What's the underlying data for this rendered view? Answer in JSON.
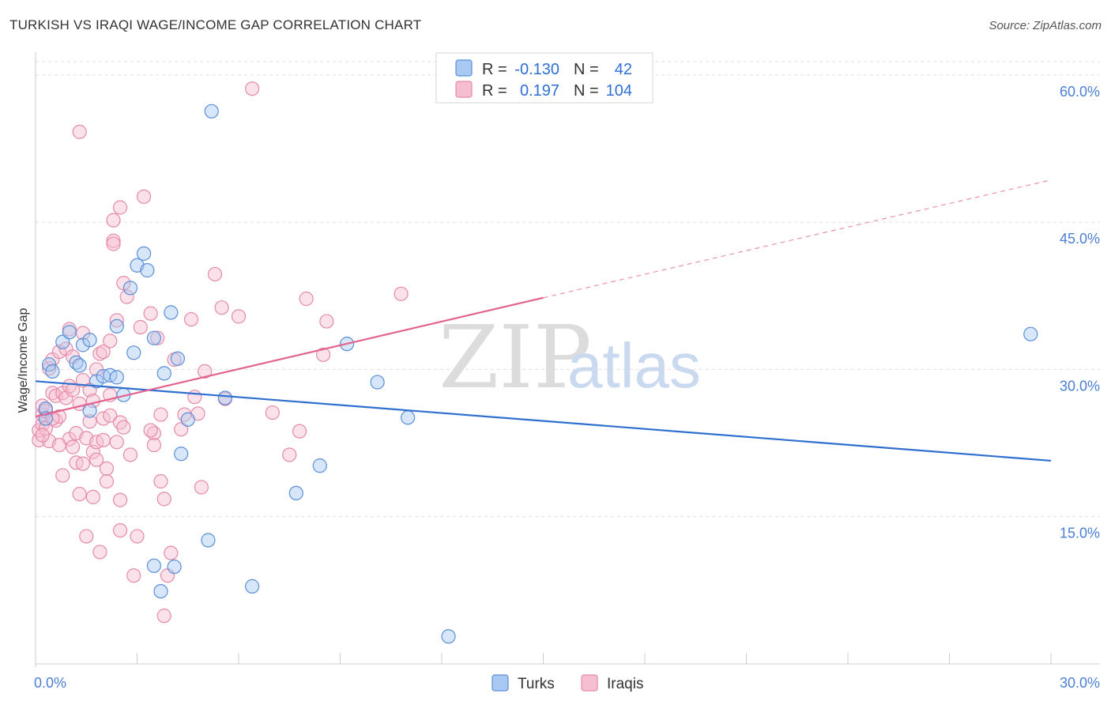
{
  "title": "TURKISH VS IRAQI WAGE/INCOME GAP CORRELATION CHART",
  "source": "Source: ZipAtlas.com",
  "watermark": {
    "zip": "ZIP",
    "atlas": "atlas"
  },
  "colors": {
    "turks_fill": "#a9c8f2",
    "turks_stroke": "#5a8fd8",
    "turks_line": "#2f6fd0",
    "iraqis_fill": "#f6bfd1",
    "iraqis_stroke": "#e58aa8",
    "iraqis_line": "#e2638f",
    "grid": "#dddddd",
    "axis_label": "#4a7fd4"
  },
  "legend": {
    "rows": [
      {
        "r_label": "R = ",
        "r_value": "-0.130",
        "n_label": "N = ",
        "n_value": "42"
      },
      {
        "r_label": "R = ",
        "r_value": "0.197",
        "n_label": "N = ",
        "n_value": "104"
      }
    ]
  },
  "chart_data": {
    "type": "scatter",
    "title": "TURKISH VS IRAQI WAGE/INCOME GAP CORRELATION CHART",
    "xlabel": "",
    "ylabel": "Wage/Income Gap",
    "xlim": [
      0,
      30
    ],
    "ylim": [
      0,
      62
    ],
    "x_tick_labels": [
      "0.0%",
      "30.0%"
    ],
    "y_ticks": [
      15,
      30,
      45,
      60
    ],
    "y_tick_labels": [
      "15.0%",
      "30.0%",
      "45.0%",
      "60.0%"
    ],
    "legend_entries": [
      "Turks",
      "Iraqis"
    ],
    "series": [
      {
        "name": "Turks",
        "trend": {
          "x": [
            0.0,
            30.0
          ],
          "y": [
            28.8,
            20.7
          ]
        },
        "points": [
          [
            0.3,
            26.0
          ],
          [
            0.3,
            25.0
          ],
          [
            0.4,
            30.5
          ],
          [
            0.5,
            29.8
          ],
          [
            0.8,
            32.8
          ],
          [
            1.0,
            33.8
          ],
          [
            1.2,
            30.7
          ],
          [
            1.3,
            30.4
          ],
          [
            1.4,
            32.5
          ],
          [
            1.6,
            33.0
          ],
          [
            1.6,
            25.8
          ],
          [
            1.8,
            28.8
          ],
          [
            2.0,
            29.3
          ],
          [
            2.2,
            29.4
          ],
          [
            2.4,
            29.2
          ],
          [
            2.4,
            34.4
          ],
          [
            2.6,
            27.4
          ],
          [
            2.8,
            38.3
          ],
          [
            2.9,
            31.7
          ],
          [
            3.0,
            40.6
          ],
          [
            3.2,
            41.8
          ],
          [
            3.3,
            40.1
          ],
          [
            3.5,
            10.0
          ],
          [
            3.7,
            7.4
          ],
          [
            3.8,
            29.6
          ],
          [
            4.0,
            35.8
          ],
          [
            4.1,
            9.9
          ],
          [
            4.2,
            31.1
          ],
          [
            4.3,
            21.4
          ],
          [
            4.5,
            24.9
          ],
          [
            5.2,
            56.3
          ],
          [
            5.1,
            12.6
          ],
          [
            5.6,
            27.1
          ],
          [
            6.4,
            7.9
          ],
          [
            7.7,
            17.4
          ],
          [
            8.4,
            20.2
          ],
          [
            9.2,
            32.6
          ],
          [
            10.1,
            28.7
          ],
          [
            11.0,
            25.1
          ],
          [
            12.2,
            2.8
          ],
          [
            29.4,
            33.6
          ],
          [
            3.5,
            33.2
          ]
        ]
      },
      {
        "name": "Iraqis",
        "trend": {
          "x": [
            0.0,
            15.0
          ],
          "y": [
            25.2,
            37.3
          ]
        },
        "trend_extension": {
          "x": [
            15.0,
            30.0
          ],
          "y": [
            37.3,
            49.3
          ]
        },
        "points": [
          [
            0.1,
            22.8
          ],
          [
            0.1,
            23.8
          ],
          [
            0.2,
            24.4
          ],
          [
            0.2,
            25.4
          ],
          [
            0.2,
            26.3
          ],
          [
            0.3,
            24.0
          ],
          [
            0.3,
            25.8
          ],
          [
            0.4,
            22.7
          ],
          [
            0.4,
            30.1
          ],
          [
            0.5,
            27.6
          ],
          [
            0.5,
            31.0
          ],
          [
            0.6,
            24.8
          ],
          [
            0.6,
            27.3
          ],
          [
            0.7,
            25.2
          ],
          [
            0.7,
            31.8
          ],
          [
            0.8,
            27.6
          ],
          [
            0.8,
            19.2
          ],
          [
            0.9,
            27.1
          ],
          [
            0.9,
            32.1
          ],
          [
            1.0,
            28.3
          ],
          [
            1.0,
            34.1
          ],
          [
            1.0,
            22.9
          ],
          [
            1.1,
            31.3
          ],
          [
            1.1,
            22.1
          ],
          [
            1.2,
            23.5
          ],
          [
            1.2,
            20.5
          ],
          [
            1.3,
            17.3
          ],
          [
            1.3,
            26.5
          ],
          [
            1.4,
            33.7
          ],
          [
            1.4,
            28.9
          ],
          [
            1.5,
            23.0
          ],
          [
            1.5,
            13.0
          ],
          [
            1.6,
            27.9
          ],
          [
            1.6,
            24.7
          ],
          [
            1.7,
            17.0
          ],
          [
            1.7,
            21.6
          ],
          [
            1.8,
            22.6
          ],
          [
            1.8,
            30.0
          ],
          [
            1.8,
            20.8
          ],
          [
            1.9,
            31.6
          ],
          [
            1.9,
            11.4
          ],
          [
            2.0,
            31.8
          ],
          [
            2.0,
            25.0
          ],
          [
            2.0,
            22.8
          ],
          [
            2.1,
            18.6
          ],
          [
            2.1,
            19.9
          ],
          [
            2.2,
            32.9
          ],
          [
            2.2,
            25.3
          ],
          [
            2.3,
            45.2
          ],
          [
            2.3,
            43.1
          ],
          [
            2.3,
            42.8
          ],
          [
            2.4,
            22.6
          ],
          [
            2.4,
            35.0
          ],
          [
            2.5,
            46.5
          ],
          [
            2.5,
            13.6
          ],
          [
            2.5,
            24.6
          ],
          [
            2.6,
            38.8
          ],
          [
            2.6,
            24.1
          ],
          [
            2.7,
            37.4
          ],
          [
            2.8,
            21.3
          ],
          [
            3.0,
            13.0
          ],
          [
            3.1,
            34.3
          ],
          [
            3.2,
            47.6
          ],
          [
            3.4,
            35.7
          ],
          [
            3.5,
            23.5
          ],
          [
            3.5,
            22.3
          ],
          [
            3.6,
            33.2
          ],
          [
            3.7,
            18.6
          ],
          [
            3.7,
            25.4
          ],
          [
            3.8,
            16.8
          ],
          [
            4.0,
            11.3
          ],
          [
            4.1,
            31.0
          ],
          [
            4.3,
            23.9
          ],
          [
            4.4,
            25.4
          ],
          [
            4.6,
            35.1
          ],
          [
            4.7,
            27.2
          ],
          [
            4.9,
            18.0
          ],
          [
            5.0,
            29.8
          ],
          [
            5.3,
            39.7
          ],
          [
            5.5,
            36.3
          ],
          [
            5.6,
            27.0
          ],
          [
            6.0,
            35.4
          ],
          [
            6.4,
            58.6
          ],
          [
            7.0,
            25.6
          ],
          [
            7.5,
            21.3
          ],
          [
            7.8,
            23.7
          ],
          [
            8.0,
            37.2
          ],
          [
            8.5,
            31.5
          ],
          [
            8.6,
            34.9
          ],
          [
            10.8,
            37.7
          ],
          [
            3.8,
            4.9
          ],
          [
            2.5,
            16.7
          ],
          [
            1.3,
            54.2
          ],
          [
            1.7,
            26.8
          ],
          [
            0.2,
            23.3
          ],
          [
            4.8,
            25.5
          ],
          [
            2.9,
            9.0
          ],
          [
            3.4,
            23.8
          ],
          [
            0.7,
            22.3
          ],
          [
            1.4,
            20.4
          ],
          [
            2.2,
            27.4
          ],
          [
            3.9,
            9.0
          ],
          [
            0.5,
            25.0
          ],
          [
            1.1,
            27.9
          ]
        ]
      }
    ]
  }
}
